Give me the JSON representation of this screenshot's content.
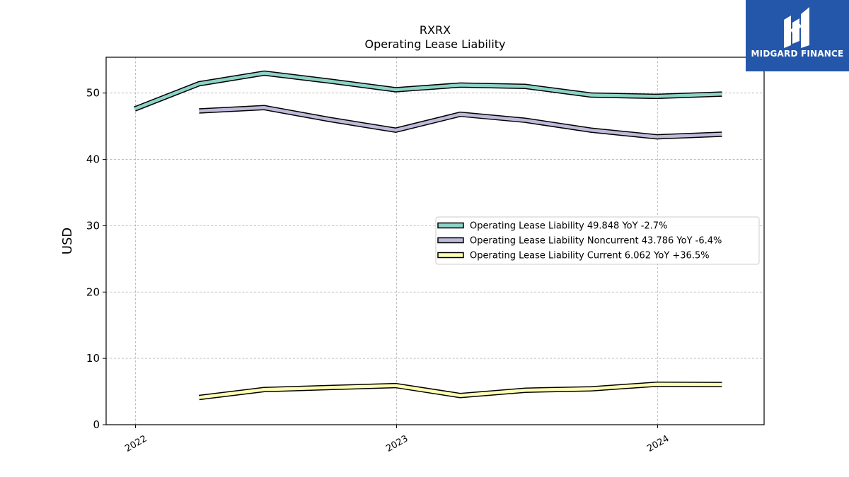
{
  "chart_data": {
    "type": "line",
    "title": "RXRX",
    "subtitle": "Operating Lease Liability",
    "ylabel": "USD",
    "xlabel": "",
    "ylim": [
      0,
      55.4
    ],
    "xlim": [
      "2021-11-21",
      "2024-05-29"
    ],
    "yticks": [
      0,
      10,
      20,
      30,
      40,
      50
    ],
    "xticks": [
      {
        "label": "2022",
        "date": "2022-01-01"
      },
      {
        "label": "2023",
        "date": "2023-01-01"
      },
      {
        "label": "2024",
        "date": "2024-01-01"
      }
    ],
    "grid": true,
    "legend_position": "center-right",
    "series": [
      {
        "name": "Operating Lease Liability",
        "legend": "Operating Lease Liability  49.848 YoY -2.7%",
        "color": "#8dd3c7",
        "points": [
          [
            "2021-12-31",
            47.6
          ],
          [
            "2022-03-31",
            51.4
          ],
          [
            "2022-06-30",
            53.0
          ],
          [
            "2022-09-30",
            51.8
          ],
          [
            "2022-12-31",
            50.5
          ],
          [
            "2023-03-31",
            51.2
          ],
          [
            "2023-06-30",
            51.0
          ],
          [
            "2023-09-30",
            49.7
          ],
          [
            "2023-12-31",
            49.5
          ],
          [
            "2024-03-31",
            49.848
          ]
        ]
      },
      {
        "name": "Operating Lease Liability Noncurrent",
        "legend": "Operating Lease Liability Noncurrent  43.786 YoY -6.4%",
        "color": "#bebada",
        "points": [
          [
            "2022-03-31",
            47.3
          ],
          [
            "2022-06-30",
            47.8
          ],
          [
            "2022-09-30",
            46.0
          ],
          [
            "2022-12-31",
            44.4
          ],
          [
            "2023-03-31",
            46.8
          ],
          [
            "2023-06-30",
            45.9
          ],
          [
            "2023-09-30",
            44.4
          ],
          [
            "2023-12-31",
            43.4
          ],
          [
            "2024-03-31",
            43.786
          ]
        ]
      },
      {
        "name": "Operating Lease Liability Current",
        "legend": "Operating Lease Liability Current  6.062 YoY +36.5%",
        "color": "#ffffb3",
        "points": [
          [
            "2022-03-31",
            4.1
          ],
          [
            "2022-06-30",
            5.3
          ],
          [
            "2022-09-30",
            5.6
          ],
          [
            "2022-12-31",
            5.9
          ],
          [
            "2023-03-31",
            4.4
          ],
          [
            "2023-06-30",
            5.2
          ],
          [
            "2023-09-30",
            5.4
          ],
          [
            "2023-12-31",
            6.1
          ],
          [
            "2024-03-31",
            6.062
          ]
        ]
      }
    ]
  },
  "logo": {
    "text": "MIDGARD FINANCE",
    "color": "#2456a9"
  }
}
